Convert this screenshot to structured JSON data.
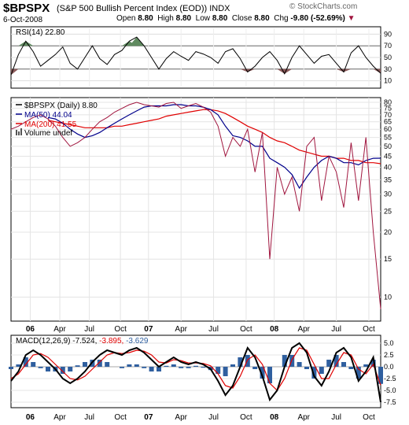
{
  "header": {
    "symbol": "$BPSPX",
    "name": "(S&P 500 Bullish Percent Index (EOD))",
    "exchange": "INDX",
    "date": "6-Oct-2008",
    "open_label": "Open",
    "open": "8.80",
    "high_label": "High",
    "high": "8.80",
    "low_label": "Low",
    "low": "8.80",
    "close_label": "Close",
    "close": "8.80",
    "chg_label": "Chg",
    "chg": "-9.80 (-52.69%)",
    "brand": "© StockCharts.com"
  },
  "colors": {
    "price": "#a0153e",
    "ma50": "#00008b",
    "ma200": "#e00000",
    "rsi": "#000000",
    "rsi_overbought_fill": "#5f8a5f",
    "rsi_oversold_fill": "#8b5a5a",
    "macd": "#000000",
    "signal": "#e00000",
    "histogram": "#2f5f9f"
  },
  "chart_data": [
    {
      "type": "line",
      "panel": "rsi",
      "legend": "RSI(14) 22.80",
      "yticks": [
        10,
        30,
        50,
        70,
        90
      ],
      "ylim": [
        0,
        100
      ],
      "overbought": 70,
      "oversold": 30,
      "grid": true,
      "x": [
        0,
        0.02,
        0.04,
        0.06,
        0.08,
        0.1,
        0.12,
        0.14,
        0.16,
        0.18,
        0.2,
        0.22,
        0.24,
        0.26,
        0.28,
        0.3,
        0.32,
        0.34,
        0.36,
        0.38,
        0.4,
        0.42,
        0.44,
        0.46,
        0.48,
        0.5,
        0.52,
        0.54,
        0.56,
        0.58,
        0.6,
        0.62,
        0.64,
        0.66,
        0.68,
        0.7,
        0.72,
        0.74,
        0.76,
        0.78,
        0.8,
        0.82,
        0.84,
        0.86,
        0.88,
        0.9,
        0.92,
        0.94,
        0.96,
        0.98,
        1.0
      ],
      "series": [
        {
          "key": "rsi",
          "values": [
            20,
            55,
            78,
            60,
            35,
            45,
            55,
            68,
            40,
            30,
            50,
            70,
            48,
            38,
            55,
            62,
            78,
            85,
            70,
            50,
            30,
            48,
            60,
            52,
            45,
            60,
            56,
            50,
            40,
            60,
            65,
            48,
            25,
            35,
            50,
            60,
            45,
            22,
            50,
            70,
            55,
            40,
            52,
            55,
            40,
            25,
            58,
            70,
            50,
            35,
            22.8
          ]
        }
      ]
    },
    {
      "type": "line",
      "panel": "price",
      "legend": [
        "$BPSPX (Daily) 8.80",
        "MA(50) 44.04",
        "MA(200) 41.55",
        "Volume undef"
      ],
      "yticks": [
        10,
        15,
        20,
        25,
        30,
        35,
        40,
        45,
        50,
        55,
        60,
        65,
        70,
        75,
        80
      ],
      "ylim": [
        8,
        80
      ],
      "log": true,
      "grid": true,
      "x": [
        0,
        0.02,
        0.04,
        0.06,
        0.08,
        0.1,
        0.12,
        0.14,
        0.16,
        0.18,
        0.2,
        0.22,
        0.24,
        0.26,
        0.28,
        0.3,
        0.32,
        0.34,
        0.36,
        0.38,
        0.4,
        0.42,
        0.44,
        0.46,
        0.48,
        0.5,
        0.52,
        0.54,
        0.56,
        0.58,
        0.6,
        0.62,
        0.64,
        0.66,
        0.68,
        0.7,
        0.72,
        0.74,
        0.76,
        0.78,
        0.8,
        0.82,
        0.84,
        0.86,
        0.88,
        0.9,
        0.92,
        0.94,
        0.96,
        0.98,
        1.0
      ],
      "series": [
        {
          "key": "price",
          "values": [
            60,
            62,
            65,
            68,
            70,
            67,
            62,
            55,
            50,
            52,
            55,
            60,
            65,
            68,
            72,
            75,
            78,
            80,
            78,
            77,
            76,
            79,
            80,
            75,
            77,
            79,
            76,
            72,
            62,
            45,
            55,
            50,
            60,
            38,
            58,
            15,
            40,
            30,
            36,
            25,
            50,
            55,
            28,
            45,
            38,
            26,
            52,
            28,
            55,
            20,
            8.8
          ]
        },
        {
          "key": "ma50",
          "values": [
            null,
            null,
            null,
            null,
            null,
            68,
            67,
            64,
            60,
            57,
            55,
            56,
            58,
            61,
            64,
            67,
            70,
            73,
            76,
            77,
            77,
            77,
            78,
            78,
            77,
            77,
            76,
            74,
            70,
            62,
            56,
            55,
            53,
            50,
            50,
            44,
            42,
            40,
            37,
            32,
            36,
            40,
            43,
            45,
            44,
            42,
            42,
            41,
            43,
            44,
            44.04
          ]
        },
        {
          "key": "ma200",
          "values": [
            null,
            null,
            null,
            null,
            null,
            66,
            65,
            64,
            63,
            62,
            61,
            61,
            61,
            61,
            62,
            62,
            63,
            64,
            65,
            66,
            67,
            69,
            70,
            71,
            72,
            73,
            74,
            74,
            73,
            71,
            68,
            65,
            62,
            60,
            58,
            55,
            53,
            52,
            50,
            48,
            47,
            46,
            45,
            45,
            44,
            44,
            43,
            43,
            42,
            42,
            41.55
          ]
        }
      ]
    },
    {
      "type": "line",
      "panel": "macd",
      "legend": [
        "MACD(12,26,9) -7.524,",
        "-3.895,",
        "-3.629"
      ],
      "yticks": [
        -7.5,
        -5.0,
        -2.5,
        0.0,
        2.5,
        5.0
      ],
      "ylim": [
        -8,
        6
      ],
      "grid": true,
      "x": [
        0,
        0.02,
        0.04,
        0.06,
        0.08,
        0.1,
        0.12,
        0.14,
        0.16,
        0.18,
        0.2,
        0.22,
        0.24,
        0.26,
        0.28,
        0.3,
        0.32,
        0.34,
        0.36,
        0.38,
        0.4,
        0.42,
        0.44,
        0.46,
        0.48,
        0.5,
        0.52,
        0.54,
        0.56,
        0.58,
        0.6,
        0.62,
        0.64,
        0.66,
        0.68,
        0.7,
        0.72,
        0.74,
        0.76,
        0.78,
        0.8,
        0.82,
        0.84,
        0.86,
        0.88,
        0.9,
        0.92,
        0.94,
        0.96,
        0.98,
        1.0
      ],
      "series": [
        {
          "key": "macd",
          "values": [
            -3,
            -1,
            2.5,
            3.5,
            2.5,
            1,
            -0.5,
            -2.5,
            -3.5,
            -2.5,
            -1,
            1,
            2.5,
            3.5,
            3,
            2.5,
            3.5,
            4,
            3,
            1.5,
            0,
            1,
            2,
            1,
            0.5,
            1,
            0.5,
            -0.5,
            -3,
            -6,
            -4,
            0,
            4,
            2,
            -2,
            -7,
            -5,
            0,
            4,
            5,
            3,
            -2,
            -4,
            -1,
            3,
            4,
            2,
            -3,
            -1,
            2,
            -7.524
          ]
        },
        {
          "key": "signal",
          "values": [
            -2.5,
            -1.5,
            0.5,
            2.5,
            2.8,
            2,
            0.5,
            -1,
            -2.5,
            -2.8,
            -2,
            -0.5,
            1,
            2.5,
            3,
            2.8,
            3,
            3.5,
            3.3,
            2.5,
            1,
            0.8,
            1.5,
            1.3,
            0.8,
            0.8,
            0.7,
            0.2,
            -1.5,
            -4,
            -4.5,
            -2,
            1.5,
            2.5,
            0.5,
            -3.5,
            -5,
            -2.5,
            1.5,
            4,
            3.5,
            0.5,
            -2.5,
            -2.5,
            0.5,
            3,
            2.5,
            -0.5,
            -1.5,
            0.5,
            -3.895
          ]
        }
      ]
    }
  ],
  "x_axis": {
    "labels": [
      "06",
      "Apr",
      "Jul",
      "Oct",
      "07",
      "Apr",
      "Jul",
      "Oct",
      "08",
      "Apr",
      "Jul",
      "Oct"
    ],
    "positions": [
      0.065,
      0.165,
      0.265,
      0.37,
      0.465,
      0.575,
      0.685,
      0.795,
      0.89,
      0.99,
      1.1,
      1.21
    ]
  }
}
